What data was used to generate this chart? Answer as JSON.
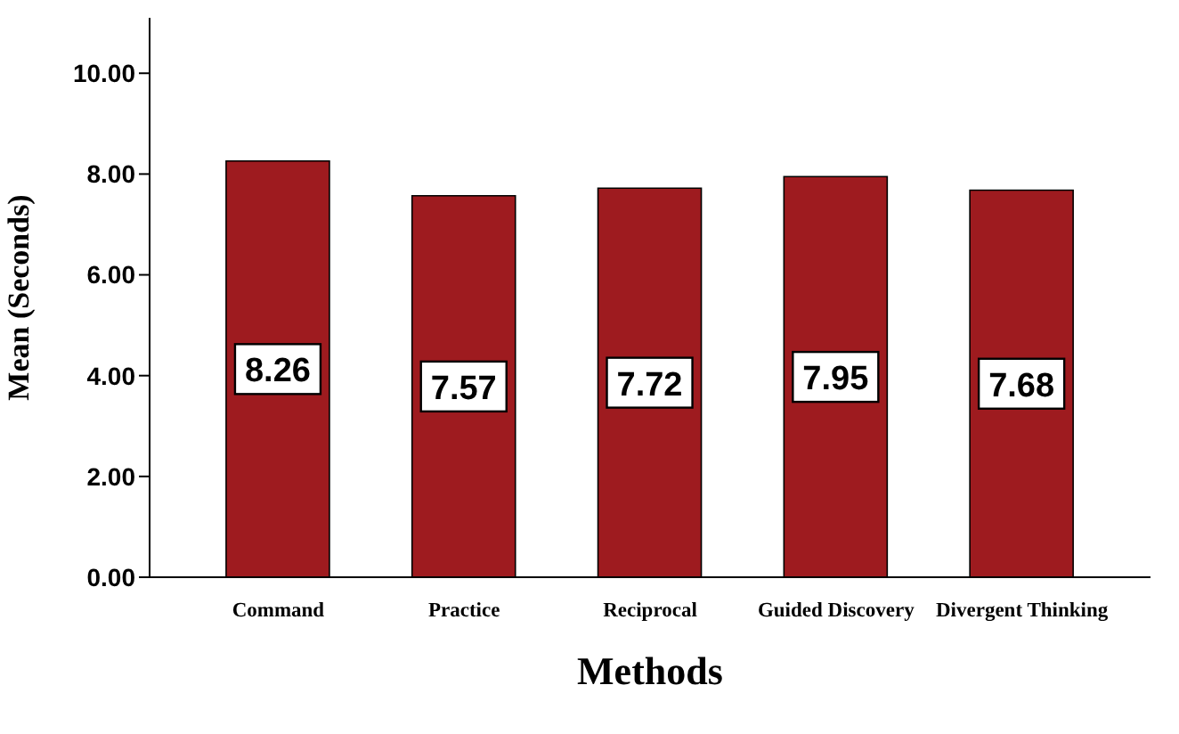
{
  "chart_data": {
    "type": "bar",
    "xlabel": "Methods",
    "ylabel": "Mean (Seconds)",
    "categories": [
      "Command",
      "Practice",
      "Reciprocal",
      "Guided Discovery",
      "Divergent Thinking"
    ],
    "values": [
      8.26,
      7.57,
      7.72,
      7.95,
      7.68
    ],
    "color": "#9e1b1f",
    "ylim": [
      0,
      11.1
    ],
    "yticks": [
      {
        "value": 0,
        "label": "0.00"
      },
      {
        "value": 2,
        "label": "2.00"
      },
      {
        "value": 4,
        "label": "4.00"
      },
      {
        "value": 6,
        "label": "6.00"
      },
      {
        "value": 8,
        "label": "8.00"
      },
      {
        "value": 10,
        "label": "10.00"
      }
    ],
    "data_labels": true,
    "grid": false,
    "legend": false
  }
}
